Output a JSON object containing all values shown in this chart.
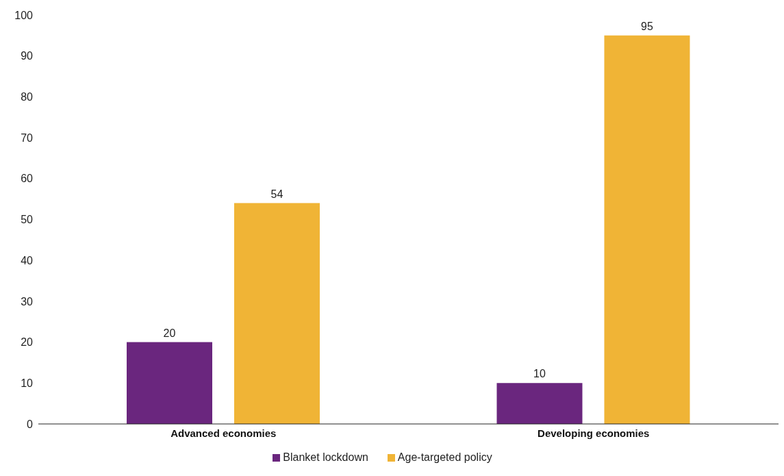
{
  "chart_data": {
    "type": "bar",
    "categories": [
      "Advanced economies",
      "Developing economies"
    ],
    "series": [
      {
        "name": "Blanket lockdown",
        "color": "#6a267e",
        "values": [
          20,
          10
        ]
      },
      {
        "name": "Age-targeted policy",
        "color": "#f0b436",
        "values": [
          54,
          95
        ]
      }
    ],
    "ylim": [
      0,
      100
    ],
    "yticks": [
      0,
      10,
      20,
      30,
      40,
      50,
      60,
      70,
      80,
      90,
      100
    ],
    "grid": false,
    "legend": "bottom",
    "data_labels": true
  }
}
